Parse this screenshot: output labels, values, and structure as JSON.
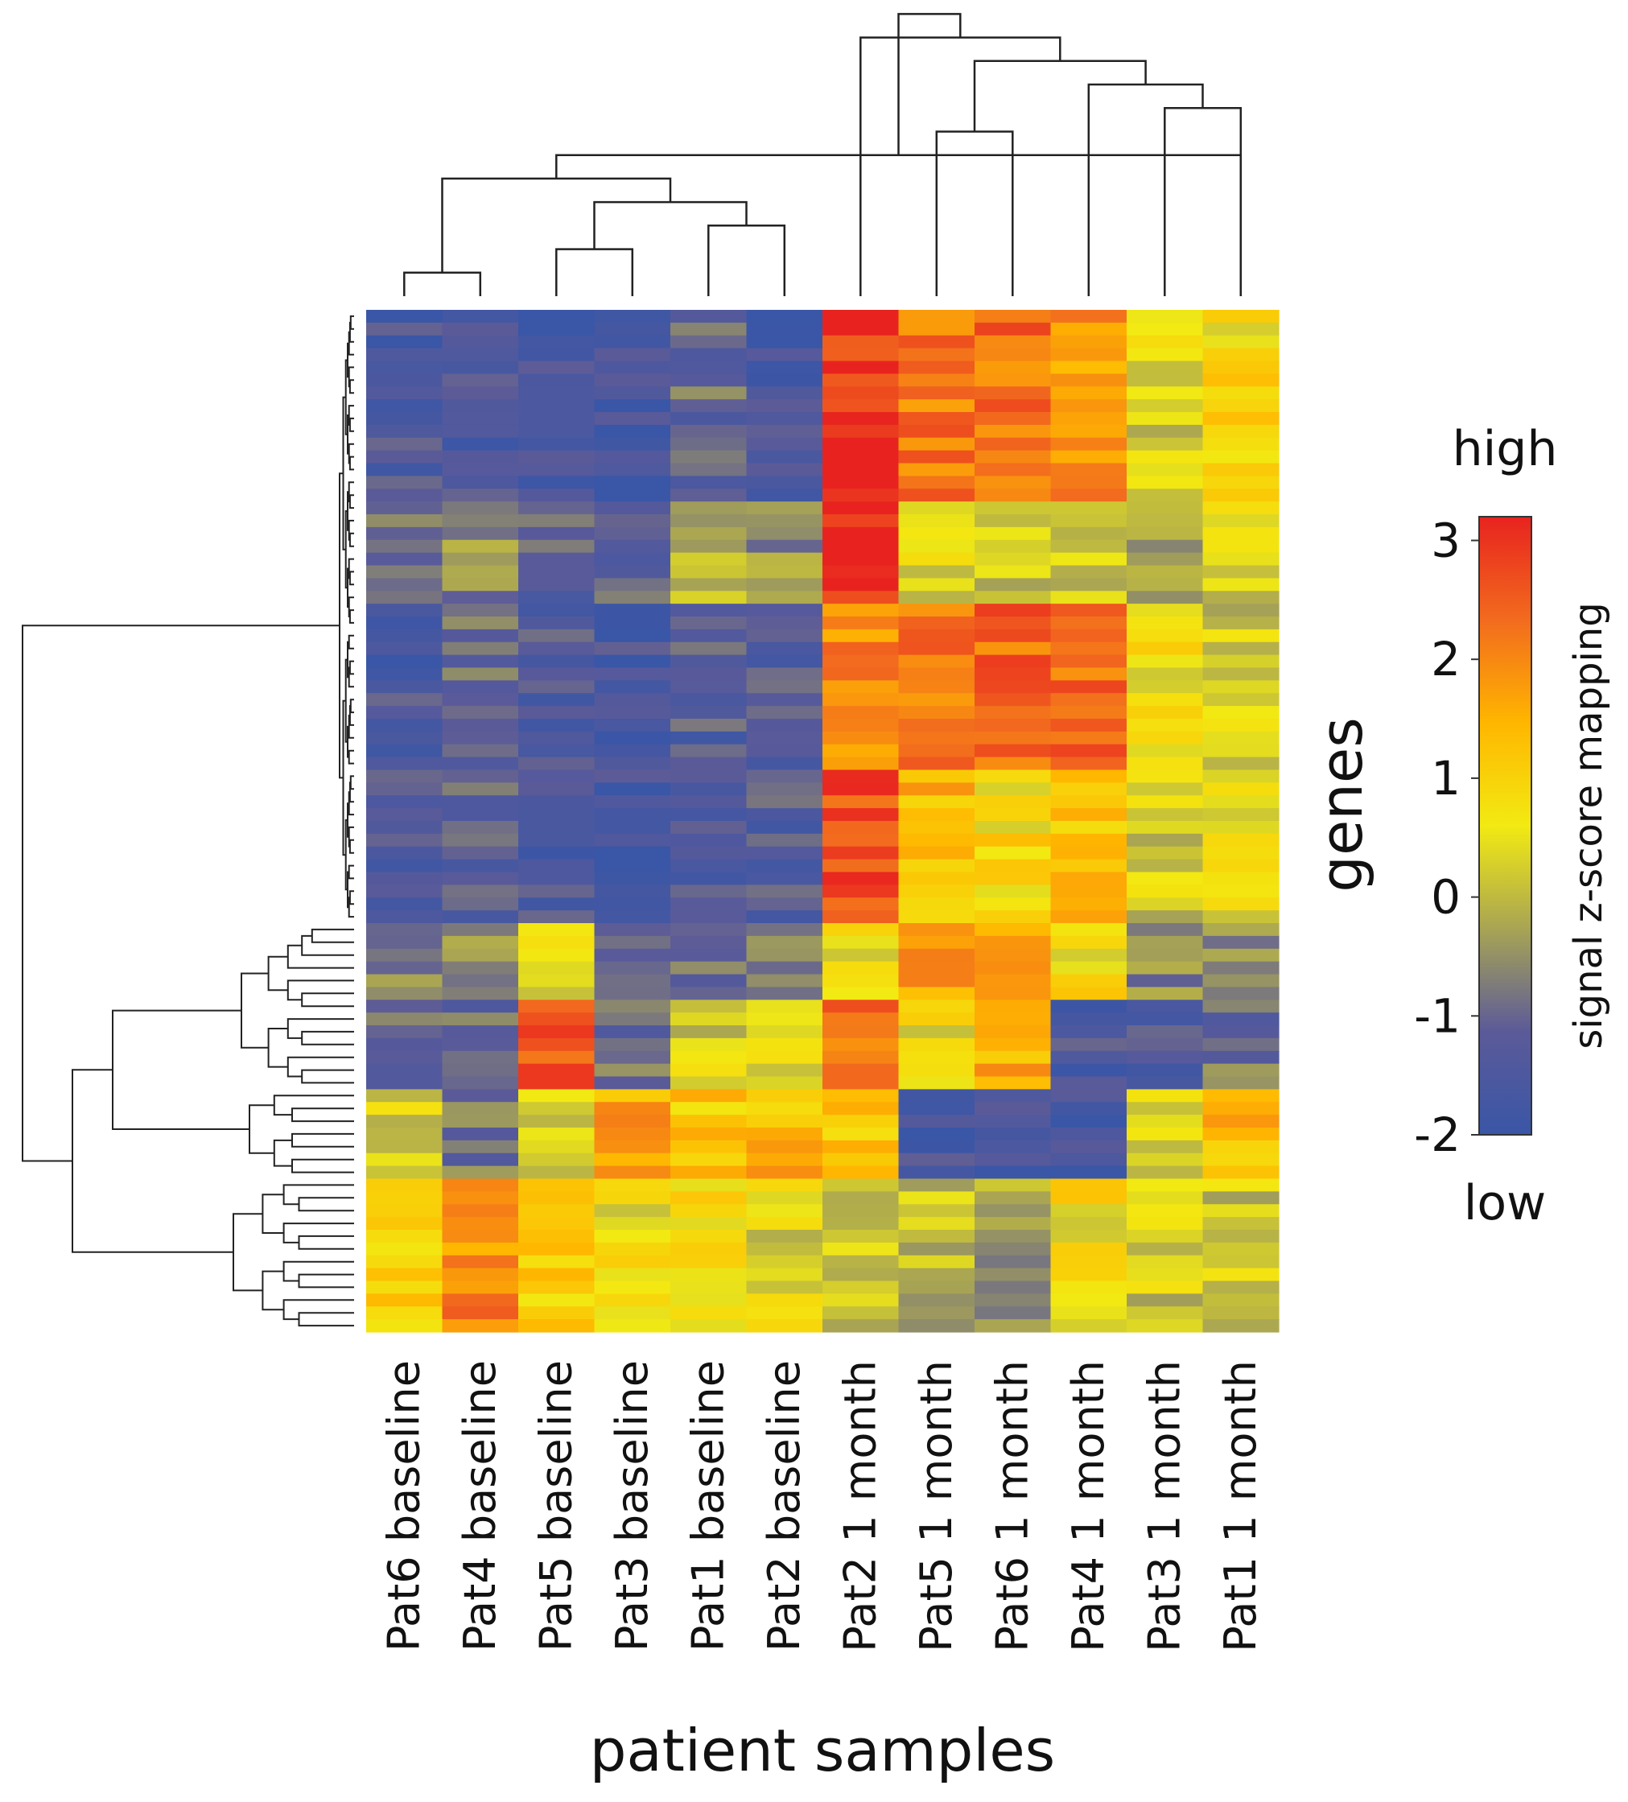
{
  "chart_data": {
    "type": "heatmap",
    "title": "",
    "xlabel": "patient samples",
    "ylabel": "genes",
    "columns": [
      "Pat6 baseline",
      "Pat4 baseline",
      "Pat5 baseline",
      "Pat3 baseline",
      "Pat1 baseline",
      "Pat2 baseline",
      "Pat2 1 month",
      "Pat5 1 month",
      "Pat6 1 month",
      "Pat4 1 month",
      "Pat3 1 month",
      "Pat1 1 month"
    ],
    "row_count": 80,
    "value_range": [
      -2,
      3.2
    ],
    "row_blocks": [
      {
        "rows": [
          0,
          15
        ],
        "values": [
          -1.5,
          -1.4,
          -1.6,
          -1.6,
          -1.0,
          -1.6,
          3.0,
          2.2,
          2.3,
          1.8,
          0.3,
          0.8
        ]
      },
      {
        "rows": [
          15,
          23
        ],
        "values": [
          -1.0,
          -0.6,
          -1.2,
          -1.0,
          -0.2,
          -0.5,
          3.0,
          0.3,
          0.0,
          0.3,
          -0.3,
          0.4
        ]
      },
      {
        "rows": [
          23,
          36
        ],
        "values": [
          -1.5,
          -1.0,
          -1.3,
          -1.6,
          -1.3,
          -1.4,
          2.0,
          2.3,
          2.4,
          2.3,
          0.6,
          0.2
        ]
      },
      {
        "rows": [
          36,
          48
        ],
        "values": [
          -1.5,
          -1.2,
          -1.5,
          -1.6,
          -1.4,
          -1.3,
          2.6,
          1.4,
          0.8,
          1.2,
          0.2,
          0.4
        ]
      },
      {
        "rows": [
          48,
          54
        ],
        "values": [
          -0.6,
          -0.7,
          0.5,
          -1.0,
          -0.8,
          -0.8,
          0.5,
          1.8,
          1.5,
          0.7,
          -0.6,
          -0.5
        ]
      },
      {
        "rows": [
          54,
          61
        ],
        "values": [
          -1.0,
          -1.0,
          2.5,
          -1.0,
          0.3,
          0.6,
          2.2,
          0.6,
          1.6,
          -1.5,
          -1.4,
          -0.9
        ]
      },
      {
        "rows": [
          61,
          68
        ],
        "values": [
          0.4,
          -0.9,
          0.2,
          1.6,
          1.2,
          1.4,
          1.2,
          -1.6,
          -1.6,
          -1.6,
          0.3,
          1.3
        ]
      },
      {
        "rows": [
          68,
          80
        ],
        "values": [
          1.2,
          2.0,
          1.0,
          0.6,
          0.8,
          0.4,
          0.1,
          0.0,
          -0.3,
          0.7,
          0.2,
          0.2
        ]
      }
    ],
    "colorbar": {
      "label": "signal z-score mapping",
      "ticks": [
        3,
        2,
        1,
        0,
        -1,
        -2
      ],
      "high_label": "high",
      "low_label": "low",
      "stops": [
        "#3a56a6",
        "#5b5a99",
        "#a8a454",
        "#f2ea12",
        "#ffb600",
        "#f26b1e",
        "#e8231f"
      ]
    },
    "column_dendrogram": [
      [
        0,
        1,
        0
      ],
      [
        2,
        3,
        1
      ],
      [
        4,
        5,
        2
      ],
      [
        13,
        14,
        3
      ],
      [
        12,
        15,
        4
      ],
      [
        11,
        16,
        5
      ],
      [
        7,
        8,
        6
      ],
      [
        10,
        11,
        7
      ],
      [
        9,
        19,
        8
      ],
      [
        18,
        20,
        9
      ],
      [
        6,
        21,
        10
      ],
      [
        17,
        22,
        11
      ]
    ],
    "row_dendrogram_note": ""
  }
}
